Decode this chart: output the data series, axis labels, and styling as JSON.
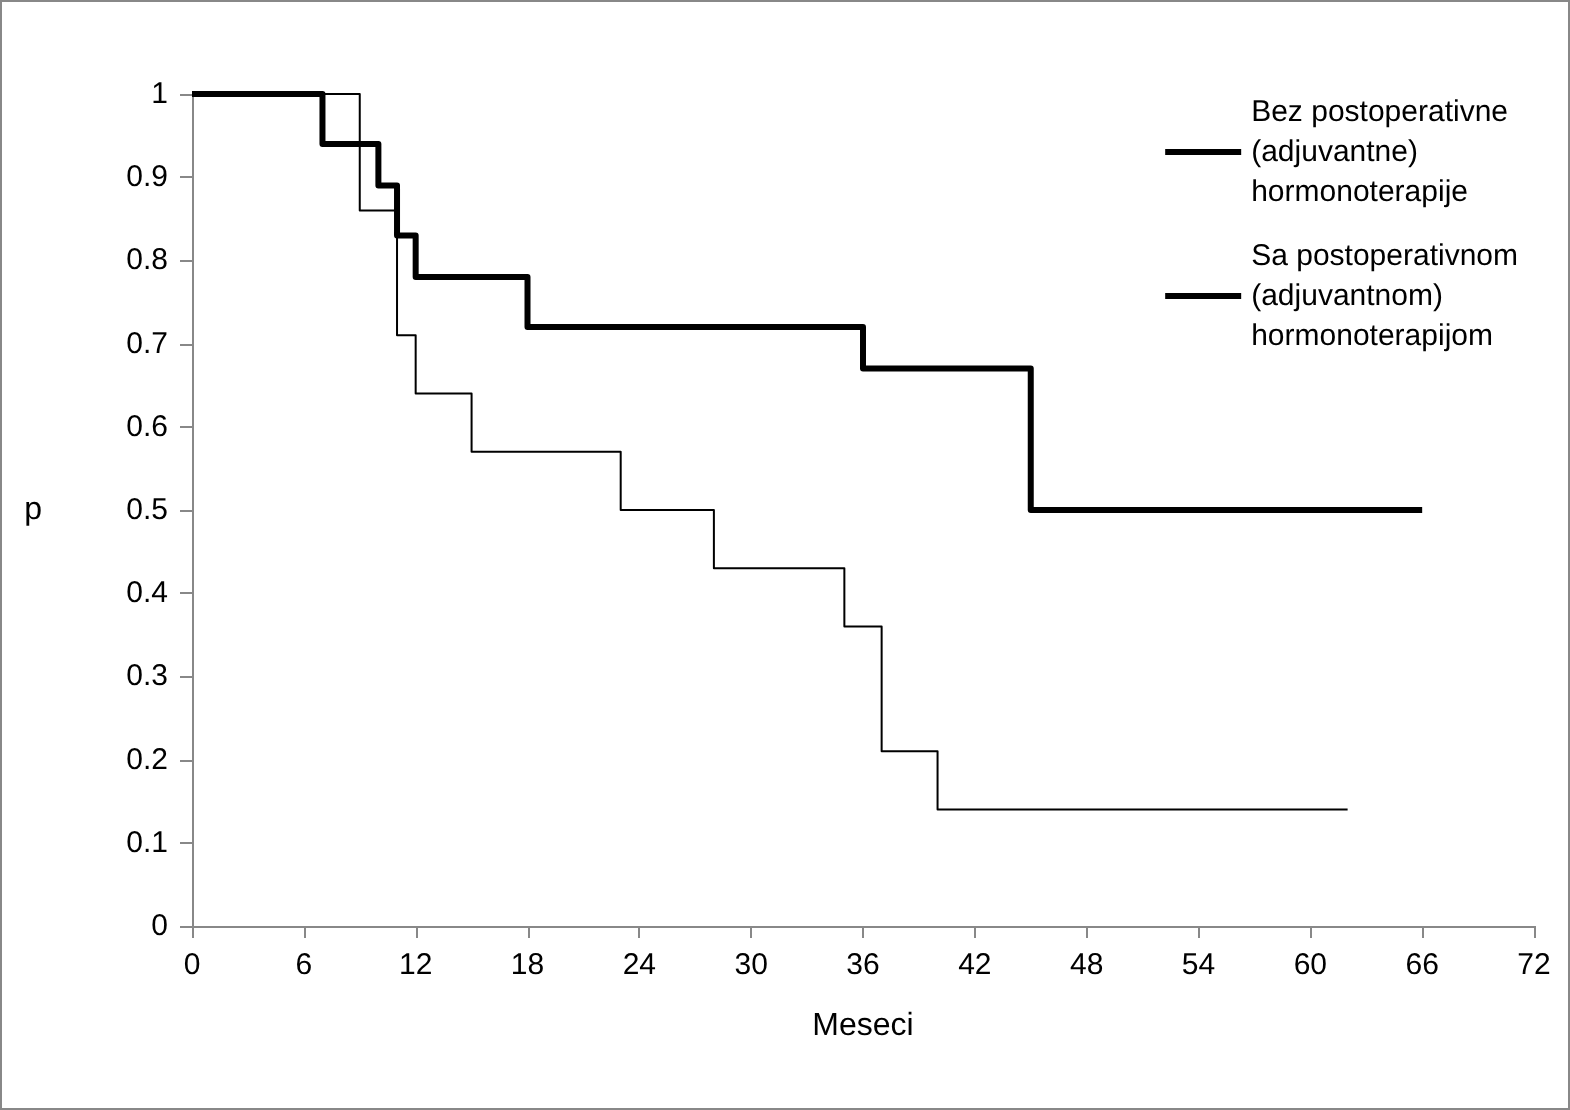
{
  "chart_data": {
    "type": "step",
    "xlabel": "Meseci",
    "ylabel": "p",
    "series": [
      {
        "name": "Bez postoperativne (adjuvantne) hormonoterapije",
        "color": "#000000",
        "x": [
          0,
          9,
          11,
          12,
          15,
          23,
          28,
          35,
          37,
          40,
          62
        ],
        "values": [
          1,
          0.86,
          0.71,
          0.64,
          0.57,
          0.5,
          0.43,
          0.36,
          0.21,
          0.14,
          0.14
        ]
      },
      {
        "name": "Sa postoperativnom (adjuvantnom) hormonoterapijom",
        "color": "#000000",
        "x": [
          0,
          7,
          10,
          11,
          12,
          18,
          36,
          45,
          66
        ],
        "values": [
          1,
          0.94,
          0.89,
          0.83,
          0.78,
          0.72,
          0.67,
          0.5,
          0.5
        ]
      }
    ],
    "xlim": [
      0,
      72
    ],
    "xticks": [
      0,
      6,
      12,
      18,
      24,
      30,
      36,
      42,
      48,
      54,
      60,
      66,
      72
    ],
    "ylim": [
      0,
      1
    ],
    "yticks": [
      0,
      0.1,
      0.2,
      0.3,
      0.4,
      0.5,
      0.6,
      0.7,
      0.8,
      0.9,
      1
    ],
    "grid": false,
    "legend": "top right",
    "marker": "none",
    "line_style": "solid"
  }
}
